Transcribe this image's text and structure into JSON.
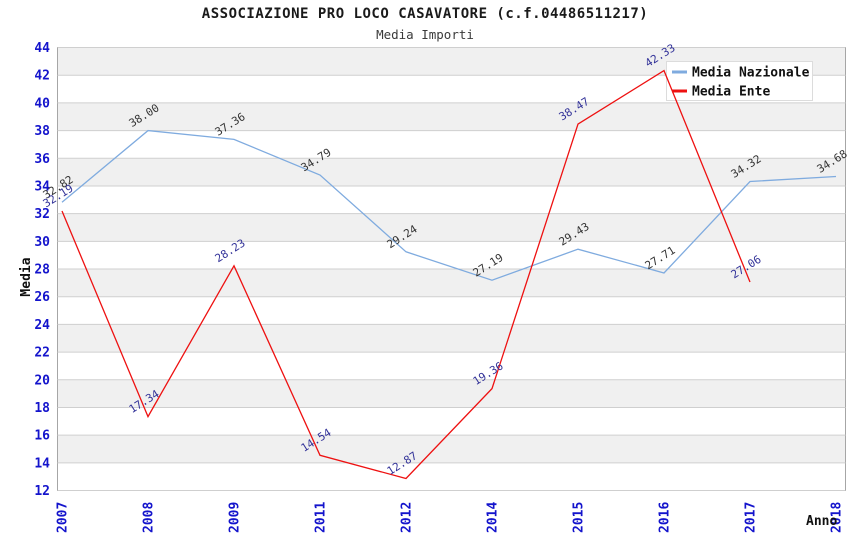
{
  "chart_data": {
    "type": "line",
    "title": "ASSOCIAZIONE PRO LOCO CASAVATORE (c.f.04486511217)",
    "subtitle": "Media Importi",
    "xlabel": "Anno",
    "ylabel": "Media",
    "ylim": [
      12,
      44
    ],
    "ytick_step": 2,
    "grid": "horizontal-striped",
    "legend_position": "top-right",
    "categories": [
      "2007",
      "2008",
      "2009",
      "2011",
      "2012",
      "2014",
      "2015",
      "2016",
      "2017",
      "2018"
    ],
    "series": [
      {
        "name": "Media Nazionale",
        "color": "#7fabdf",
        "label_color": "#333333",
        "values": [
          32.82,
          38.0,
          37.36,
          34.79,
          29.24,
          27.19,
          29.43,
          27.71,
          34.32,
          34.68
        ]
      },
      {
        "name": "Media Ente",
        "color": "#ee1111",
        "label_color": "#333399",
        "values": [
          32.19,
          17.34,
          28.23,
          14.54,
          12.87,
          19.36,
          38.47,
          42.33,
          27.06,
          null
        ]
      }
    ],
    "colors": {
      "tick_label": "#1414cc",
      "band": "#f0f0f0",
      "gridline": "#cfcfcf",
      "plot_border": "#a6a6a6",
      "axis_title": "#111111",
      "legend_border": "#dcdcdc",
      "background": "#ffffff"
    }
  }
}
